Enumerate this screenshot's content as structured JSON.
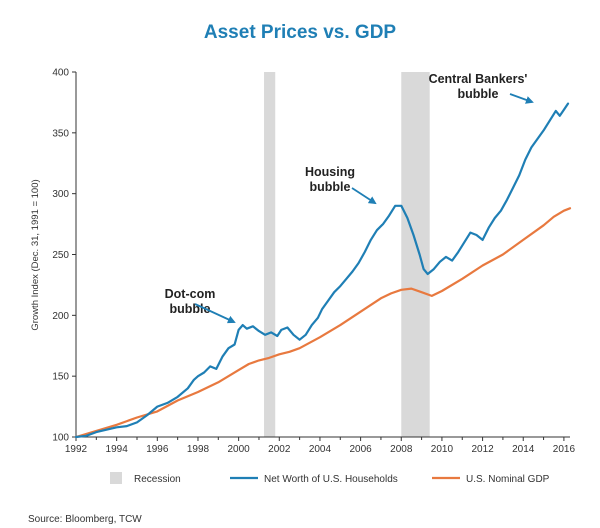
{
  "chart_data": {
    "type": "line",
    "title": "Asset Prices vs. GDP",
    "ylabel": "Growth Index (Dec. 31, 1991 = 100)",
    "xlabel": "",
    "xlim": [
      1992,
      2016.3
    ],
    "ylim": [
      100,
      400
    ],
    "x_ticks": [
      "1992",
      "1994",
      "1996",
      "1998",
      "2000",
      "2002",
      "2004",
      "2006",
      "2008",
      "2010",
      "2012",
      "2014",
      "2016"
    ],
    "y_ticks": [
      "100",
      "150",
      "200",
      "250",
      "300",
      "350",
      "400"
    ],
    "recessions": [
      {
        "start": 2001.25,
        "end": 2001.8
      },
      {
        "start": 2008.0,
        "end": 2009.4
      }
    ],
    "colors": {
      "title": "#1f7fb5",
      "net_worth": "#1f7fb5",
      "gdp": "#e8793f",
      "recession": "#d9d9d9",
      "axis": "#333333"
    },
    "series": [
      {
        "name": "Net Worth of U.S. Households",
        "color": "#1f7fb5",
        "points": [
          [
            1992.0,
            100
          ],
          [
            1992.5,
            101
          ],
          [
            1993.0,
            104
          ],
          [
            1993.5,
            106
          ],
          [
            1994.0,
            108
          ],
          [
            1994.5,
            109
          ],
          [
            1995.0,
            112
          ],
          [
            1995.5,
            118
          ],
          [
            1996.0,
            125
          ],
          [
            1996.5,
            128
          ],
          [
            1997.0,
            133
          ],
          [
            1997.5,
            140
          ],
          [
            1997.8,
            147
          ],
          [
            1998.0,
            150
          ],
          [
            1998.3,
            153
          ],
          [
            1998.6,
            158
          ],
          [
            1998.9,
            156
          ],
          [
            1999.2,
            166
          ],
          [
            1999.5,
            173
          ],
          [
            1999.8,
            176
          ],
          [
            2000.0,
            188
          ],
          [
            2000.2,
            192
          ],
          [
            2000.4,
            189
          ],
          [
            2000.7,
            191
          ],
          [
            2001.0,
            187
          ],
          [
            2001.3,
            184
          ],
          [
            2001.6,
            186
          ],
          [
            2001.9,
            183
          ],
          [
            2002.1,
            188
          ],
          [
            2002.4,
            190
          ],
          [
            2002.7,
            184
          ],
          [
            2003.0,
            180
          ],
          [
            2003.3,
            184
          ],
          [
            2003.6,
            192
          ],
          [
            2003.9,
            198
          ],
          [
            2004.1,
            205
          ],
          [
            2004.4,
            212
          ],
          [
            2004.7,
            219
          ],
          [
            2005.0,
            224
          ],
          [
            2005.3,
            230
          ],
          [
            2005.6,
            236
          ],
          [
            2005.9,
            243
          ],
          [
            2006.2,
            252
          ],
          [
            2006.5,
            262
          ],
          [
            2006.8,
            270
          ],
          [
            2007.1,
            275
          ],
          [
            2007.4,
            282
          ],
          [
            2007.7,
            290
          ],
          [
            2008.0,
            290
          ],
          [
            2008.3,
            280
          ],
          [
            2008.6,
            266
          ],
          [
            2008.9,
            250
          ],
          [
            2009.1,
            238
          ],
          [
            2009.3,
            234
          ],
          [
            2009.6,
            238
          ],
          [
            2009.9,
            244
          ],
          [
            2010.2,
            248
          ],
          [
            2010.5,
            245
          ],
          [
            2010.8,
            252
          ],
          [
            2011.1,
            260
          ],
          [
            2011.4,
            268
          ],
          [
            2011.7,
            266
          ],
          [
            2012.0,
            262
          ],
          [
            2012.3,
            272
          ],
          [
            2012.6,
            280
          ],
          [
            2012.9,
            286
          ],
          [
            2013.2,
            295
          ],
          [
            2013.5,
            305
          ],
          [
            2013.8,
            315
          ],
          [
            2014.1,
            328
          ],
          [
            2014.4,
            338
          ],
          [
            2014.7,
            345
          ],
          [
            2015.0,
            352
          ],
          [
            2015.3,
            360
          ],
          [
            2015.6,
            368
          ],
          [
            2015.8,
            364
          ],
          [
            2016.0,
            369
          ],
          [
            2016.2,
            374
          ]
        ]
      },
      {
        "name": "U.S. Nominal GDP",
        "color": "#e8793f",
        "points": [
          [
            1992.0,
            100
          ],
          [
            1993.0,
            105
          ],
          [
            1994.0,
            110
          ],
          [
            1995.0,
            116
          ],
          [
            1996.0,
            121
          ],
          [
            1997.0,
            130
          ],
          [
            1998.0,
            137
          ],
          [
            1999.0,
            145
          ],
          [
            2000.0,
            155
          ],
          [
            2000.5,
            160
          ],
          [
            2001.0,
            163
          ],
          [
            2001.5,
            165
          ],
          [
            2002.0,
            168
          ],
          [
            2002.5,
            170
          ],
          [
            2003.0,
            173
          ],
          [
            2004.0,
            182
          ],
          [
            2005.0,
            192
          ],
          [
            2006.0,
            203
          ],
          [
            2007.0,
            214
          ],
          [
            2007.5,
            218
          ],
          [
            2008.0,
            221
          ],
          [
            2008.5,
            222
          ],
          [
            2009.0,
            219
          ],
          [
            2009.5,
            216
          ],
          [
            2010.0,
            220
          ],
          [
            2011.0,
            230
          ],
          [
            2012.0,
            241
          ],
          [
            2013.0,
            250
          ],
          [
            2014.0,
            262
          ],
          [
            2015.0,
            274
          ],
          [
            2015.5,
            281
          ],
          [
            2016.0,
            286
          ],
          [
            2016.3,
            288
          ]
        ]
      }
    ],
    "annotations": [
      {
        "lines": [
          "Dot-com",
          "bubble"
        ]
      },
      {
        "lines": [
          "Housing",
          "bubble"
        ]
      },
      {
        "lines": [
          "Central Bankers'",
          "bubble"
        ]
      }
    ],
    "legend": [
      "Recession",
      "Net Worth of U.S. Households",
      "U.S. Nominal GDP"
    ],
    "source": "Source: Bloomberg, TCW"
  }
}
